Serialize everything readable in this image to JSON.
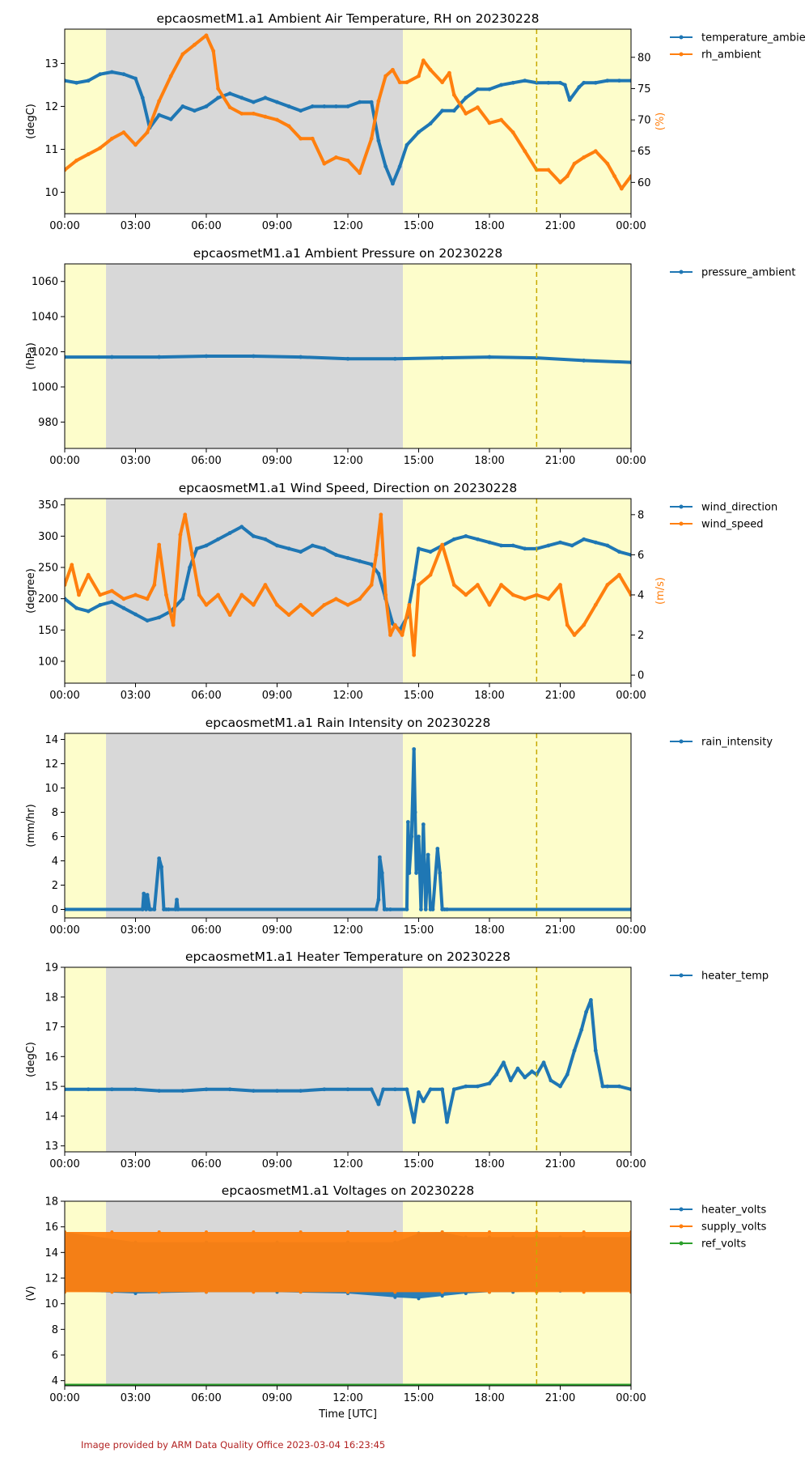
{
  "credit": "Image provided by ARM Data Quality Office 2023-03-04 16:23:45",
  "shared_xlabel": "Time [UTC]",
  "colors": {
    "blue": "#1f77b4",
    "orange": "#ff7f0e",
    "green": "#2ca02c",
    "day_shade": "#fdfdcb",
    "night_shade": "#d8d8d8",
    "marker_line": "#c8aa00"
  },
  "shading": {
    "day_start": "00:00",
    "night_start": "01:45",
    "night_end": "14:20",
    "day_end": "24:00",
    "vertical_dashed_line": "20:00"
  },
  "chart_data": [
    {
      "type": "line",
      "title": "epcaosmetM1.a1 Ambient Air Temperature, RH on 20230228",
      "xlabel": "",
      "xlim": [
        "00:00",
        "24:00"
      ],
      "xticks": [
        "00:00",
        "03:00",
        "06:00",
        "09:00",
        "12:00",
        "15:00",
        "18:00",
        "21:00",
        "00:00"
      ],
      "ylabel": "(degC)",
      "ylim": [
        9.5,
        13.8
      ],
      "yticks": [
        10,
        11,
        12,
        13
      ],
      "y2label": "(%)",
      "y2lim": [
        55,
        84.5
      ],
      "y2ticks": [
        60,
        65,
        70,
        75,
        80
      ],
      "legend": [
        "temperature_ambie",
        "rh_ambient"
      ],
      "legend_position": "outside-right",
      "series": [
        {
          "name": "temperature_ambient",
          "axis": "left",
          "color": "#1f77b4",
          "x": [
            0,
            0.5,
            1,
            1.5,
            2,
            2.5,
            3,
            3.3,
            3.6,
            4,
            4.5,
            5,
            5.5,
            6,
            6.5,
            7,
            7.5,
            8,
            8.5,
            9,
            9.5,
            10,
            10.5,
            11,
            11.5,
            12,
            12.5,
            13,
            13.3,
            13.6,
            13.9,
            14.2,
            14.5,
            15,
            15.5,
            16,
            16.5,
            17,
            17.5,
            18,
            18.5,
            19,
            19.5,
            20,
            20.5,
            21,
            21.2,
            21.4,
            21.8,
            22,
            22.5,
            23,
            23.5,
            24
          ],
          "y": [
            12.6,
            12.55,
            12.6,
            12.75,
            12.8,
            12.75,
            12.65,
            12.2,
            11.5,
            11.8,
            11.7,
            12.0,
            11.9,
            12.0,
            12.2,
            12.3,
            12.2,
            12.1,
            12.2,
            12.1,
            12.0,
            11.9,
            12.0,
            12.0,
            12.0,
            12.0,
            12.1,
            12.1,
            11.2,
            10.6,
            10.2,
            10.6,
            11.1,
            11.4,
            11.6,
            11.9,
            11.9,
            12.2,
            12.4,
            12.4,
            12.5,
            12.55,
            12.6,
            12.55,
            12.55,
            12.55,
            12.5,
            12.15,
            12.45,
            12.55,
            12.55,
            12.6,
            12.6,
            12.6
          ]
        },
        {
          "name": "rh_ambient",
          "axis": "right",
          "color": "#ff7f0e",
          "x": [
            0,
            0.5,
            1,
            1.5,
            2,
            2.5,
            3,
            3.5,
            4,
            4.5,
            5,
            5.5,
            6,
            6.3,
            6.5,
            7,
            7.5,
            8,
            8.5,
            9,
            9.5,
            10,
            10.5,
            11,
            11.5,
            12,
            12.5,
            13,
            13.3,
            13.6,
            13.9,
            14.2,
            14.5,
            15,
            15.2,
            15.5,
            16,
            16.3,
            16.5,
            17,
            17.5,
            18,
            18.5,
            19,
            19.5,
            20,
            20.5,
            21,
            21.3,
            21.6,
            22,
            22.5,
            23,
            23.3,
            23.6,
            24
          ],
          "y": [
            62,
            63.5,
            64.5,
            65.5,
            67,
            68,
            66,
            68,
            73,
            77,
            80.5,
            82,
            83.5,
            81,
            75,
            72,
            71,
            71,
            70.5,
            70,
            69,
            67,
            67,
            63,
            64,
            63.5,
            61.5,
            67,
            73,
            77,
            78,
            76,
            76,
            77,
            79.5,
            78,
            76,
            77.5,
            74,
            71,
            72,
            69.5,
            70,
            68,
            65,
            62,
            62,
            60,
            61,
            63,
            64,
            65,
            63,
            61,
            59,
            61
          ]
        }
      ]
    },
    {
      "type": "line",
      "title": "epcaosmetM1.a1 Ambient Pressure on 20230228",
      "xlabel": "",
      "xlim": [
        "00:00",
        "24:00"
      ],
      "xticks": [
        "00:00",
        "03:00",
        "06:00",
        "09:00",
        "12:00",
        "15:00",
        "18:00",
        "21:00",
        "00:00"
      ],
      "ylabel": "(hPa)",
      "ylim": [
        965,
        1070
      ],
      "yticks": [
        980,
        1000,
        1020,
        1040,
        1060
      ],
      "legend": [
        "pressure_ambient"
      ],
      "legend_position": "outside-right",
      "series": [
        {
          "name": "pressure_ambient",
          "axis": "left",
          "color": "#1f77b4",
          "x": [
            0,
            2,
            4,
            6,
            8,
            10,
            12,
            14,
            16,
            18,
            20,
            22,
            24
          ],
          "y": [
            1017,
            1017,
            1017,
            1017.5,
            1017.5,
            1017,
            1016,
            1016,
            1016.5,
            1017,
            1016.5,
            1015,
            1014
          ]
        }
      ]
    },
    {
      "type": "line",
      "title": "epcaosmetM1.a1 Wind Speed, Direction on 20230228",
      "xlabel": "",
      "xlim": [
        "00:00",
        "24:00"
      ],
      "xticks": [
        "00:00",
        "03:00",
        "06:00",
        "09:00",
        "12:00",
        "15:00",
        "18:00",
        "21:00",
        "00:00"
      ],
      "ylabel": "(degree)",
      "ylim": [
        65,
        360
      ],
      "yticks": [
        100,
        150,
        200,
        250,
        300,
        350
      ],
      "y2label": "(m/s)",
      "y2lim": [
        -0.4,
        8.8
      ],
      "y2ticks": [
        0,
        2,
        4,
        6,
        8
      ],
      "legend": [
        "wind_direction",
        "wind_speed"
      ],
      "legend_position": "outside-right",
      "series": [
        {
          "name": "wind_direction",
          "axis": "left",
          "color": "#1f77b4",
          "x": [
            0,
            0.5,
            1,
            1.5,
            2,
            2.5,
            3,
            3.5,
            4,
            4.5,
            5,
            5.3,
            5.6,
            6,
            6.5,
            7,
            7.5,
            8,
            8.5,
            9,
            9.5,
            10,
            10.5,
            11,
            11.5,
            12,
            12.5,
            13,
            13.3,
            13.6,
            13.9,
            14.2,
            14.5,
            14.8,
            15,
            15.5,
            16,
            16.5,
            17,
            17.5,
            18,
            18.5,
            19,
            19.5,
            20,
            20.5,
            21,
            21.5,
            22,
            22.5,
            23,
            23.5,
            24
          ],
          "y": [
            200,
            185,
            180,
            190,
            195,
            185,
            175,
            165,
            170,
            180,
            200,
            250,
            280,
            285,
            295,
            305,
            315,
            300,
            295,
            285,
            280,
            275,
            285,
            280,
            270,
            265,
            260,
            255,
            240,
            200,
            160,
            150,
            170,
            230,
            280,
            275,
            285,
            295,
            300,
            295,
            290,
            285,
            285,
            280,
            280,
            285,
            290,
            285,
            295,
            290,
            285,
            275,
            270
          ]
        },
        {
          "name": "wind_speed",
          "axis": "right",
          "color": "#ff7f0e",
          "x": [
            0,
            0.3,
            0.6,
            1,
            1.5,
            2,
            2.5,
            3,
            3.5,
            3.8,
            4,
            4.3,
            4.6,
            4.9,
            5.1,
            5.4,
            5.7,
            6,
            6.5,
            7,
            7.5,
            8,
            8.5,
            9,
            9.5,
            10,
            10.5,
            11,
            11.5,
            12,
            12.5,
            13,
            13.2,
            13.4,
            13.6,
            13.8,
            14,
            14.3,
            14.6,
            14.8,
            15,
            15.5,
            16,
            16.5,
            17,
            17.5,
            18,
            18.5,
            19,
            19.5,
            20,
            20.5,
            21,
            21.3,
            21.6,
            22,
            22.5,
            23,
            23.5,
            24
          ],
          "y": [
            4.5,
            5.5,
            4.0,
            5.0,
            4.0,
            4.2,
            3.8,
            4.0,
            3.8,
            4.5,
            6.5,
            4.0,
            2.5,
            7.0,
            8.0,
            6.0,
            4.0,
            3.5,
            4.0,
            3.0,
            4.0,
            3.5,
            4.5,
            3.5,
            3.0,
            3.5,
            3.0,
            3.5,
            3.8,
            3.5,
            3.8,
            4.5,
            6.0,
            8.0,
            4.0,
            2.0,
            2.5,
            2.0,
            3.5,
            1.0,
            4.5,
            5.0,
            6.5,
            4.5,
            4.0,
            4.5,
            3.5,
            4.5,
            4.0,
            3.8,
            4.0,
            3.8,
            4.5,
            2.5,
            2.0,
            2.5,
            3.5,
            4.5,
            5.0,
            4.0
          ]
        }
      ]
    },
    {
      "type": "line",
      "title": "epcaosmetM1.a1 Rain Intensity on 20230228",
      "xlabel": "",
      "xlim": [
        "00:00",
        "24:00"
      ],
      "xticks": [
        "00:00",
        "03:00",
        "06:00",
        "09:00",
        "12:00",
        "15:00",
        "18:00",
        "21:00",
        "00:00"
      ],
      "ylabel": "(mm/hr)",
      "ylim": [
        -0.7,
        14.5
      ],
      "yticks": [
        0,
        2,
        4,
        6,
        8,
        10,
        12,
        14
      ],
      "legend": [
        "rain_intensity"
      ],
      "legend_position": "outside-right",
      "series": [
        {
          "name": "rain_intensity",
          "axis": "left",
          "color": "#1f77b4",
          "x": [
            0,
            3.3,
            3.35,
            3.45,
            3.5,
            3.6,
            3.65,
            3.8,
            4.0,
            4.1,
            4.2,
            4.3,
            4.4,
            4.7,
            4.75,
            4.8,
            13.2,
            13.3,
            13.35,
            13.45,
            13.55,
            13.65,
            13.8,
            14.5,
            14.55,
            14.6,
            14.7,
            14.8,
            14.85,
            14.9,
            15.0,
            15.1,
            15.2,
            15.3,
            15.4,
            15.5,
            15.6,
            15.8,
            15.9,
            16.0,
            16.1,
            16.2,
            24
          ],
          "y": [
            0,
            0,
            1.3,
            0,
            1.2,
            0,
            0,
            0,
            4.2,
            3.5,
            0,
            0,
            0,
            0,
            0.8,
            0,
            0,
            0.8,
            4.3,
            3.0,
            0,
            0,
            0,
            0,
            7.2,
            3.0,
            6.0,
            13.2,
            8.0,
            3.0,
            6.0,
            0,
            7.0,
            0,
            4.5,
            0,
            0,
            5.0,
            3.0,
            0,
            0,
            0,
            0
          ]
        }
      ]
    },
    {
      "type": "line",
      "title": "epcaosmetM1.a1 Heater Temperature on 20230228",
      "xlabel": "",
      "xlim": [
        "00:00",
        "24:00"
      ],
      "xticks": [
        "00:00",
        "03:00",
        "06:00",
        "09:00",
        "12:00",
        "15:00",
        "18:00",
        "21:00",
        "00:00"
      ],
      "ylabel": "(degC)",
      "ylim": [
        12.8,
        19
      ],
      "yticks": [
        13,
        14,
        15,
        16,
        17,
        18,
        19
      ],
      "legend": [
        "heater_temp"
      ],
      "legend_position": "outside-right",
      "series": [
        {
          "name": "heater_temp",
          "axis": "left",
          "color": "#1f77b4",
          "x": [
            0,
            1,
            2,
            3,
            4,
            5,
            6,
            7,
            8,
            9,
            10,
            11,
            12,
            13,
            13.3,
            13.5,
            14,
            14.5,
            14.8,
            15,
            15.2,
            15.5,
            16,
            16.2,
            16.5,
            17,
            17.5,
            18,
            18.3,
            18.6,
            18.9,
            19.2,
            19.5,
            19.8,
            20,
            20.3,
            20.6,
            21,
            21.3,
            21.6,
            21.9,
            22.1,
            22.3,
            22.5,
            22.8,
            23,
            23.5,
            24
          ],
          "y": [
            14.9,
            14.9,
            14.9,
            14.9,
            14.85,
            14.85,
            14.9,
            14.9,
            14.85,
            14.85,
            14.85,
            14.9,
            14.9,
            14.9,
            14.4,
            14.9,
            14.9,
            14.9,
            13.8,
            14.8,
            14.5,
            14.9,
            14.9,
            13.8,
            14.9,
            15.0,
            15.0,
            15.1,
            15.4,
            15.8,
            15.2,
            15.6,
            15.3,
            15.5,
            15.4,
            15.8,
            15.2,
            15.0,
            15.4,
            16.2,
            16.9,
            17.5,
            17.9,
            16.2,
            15.0,
            15.0,
            15.0,
            14.9
          ]
        }
      ]
    },
    {
      "type": "line",
      "title": "epcaosmetM1.a1 Voltages on 20230228",
      "xlabel": "Time [UTC]",
      "xlim": [
        "00:00",
        "24:00"
      ],
      "xticks": [
        "00:00",
        "03:00",
        "06:00",
        "09:00",
        "12:00",
        "15:00",
        "18:00",
        "21:00",
        "00:00"
      ],
      "ylabel": "(V)",
      "ylim": [
        3.6,
        18
      ],
      "yticks": [
        4,
        6,
        8,
        10,
        12,
        14,
        16,
        18
      ],
      "legend": [
        "heater_volts",
        "supply_volts",
        "ref_volts"
      ],
      "legend_position": "outside-right",
      "series": [
        {
          "name": "heater_volts",
          "axis": "left",
          "color": "#1f77b4",
          "band": true,
          "x": [
            0,
            3,
            6,
            9,
            12,
            14,
            15,
            16,
            17,
            18,
            19,
            20,
            21,
            22,
            24
          ],
          "y_low": [
            11.0,
            10.8,
            10.9,
            10.9,
            10.8,
            10.5,
            10.4,
            10.6,
            10.8,
            10.9,
            10.9,
            11.0,
            11.0,
            11.0,
            11.0
          ],
          "y_high": [
            15.6,
            14.8,
            14.8,
            14.8,
            14.8,
            14.8,
            15.5,
            15.6,
            15.2,
            15.2,
            15.2,
            15.2,
            15.2,
            15.2,
            15.2
          ]
        },
        {
          "name": "supply_volts",
          "axis": "left",
          "color": "#ff7f0e",
          "band": true,
          "x": [
            0,
            2,
            4,
            6,
            8,
            10,
            12,
            14,
            16,
            18,
            20,
            22,
            24
          ],
          "y_low": [
            10.9,
            10.9,
            10.9,
            10.9,
            10.9,
            10.9,
            10.9,
            10.9,
            10.9,
            10.9,
            10.9,
            10.9,
            10.9
          ],
          "y_high": [
            15.6,
            15.6,
            15.6,
            15.6,
            15.6,
            15.6,
            15.6,
            15.6,
            15.6,
            15.6,
            15.6,
            15.6,
            15.6
          ]
        },
        {
          "name": "ref_volts",
          "axis": "left",
          "color": "#2ca02c",
          "x": [
            0,
            6,
            12,
            18,
            24
          ],
          "y": [
            3.6,
            3.6,
            3.6,
            3.6,
            3.6
          ]
        }
      ]
    }
  ]
}
